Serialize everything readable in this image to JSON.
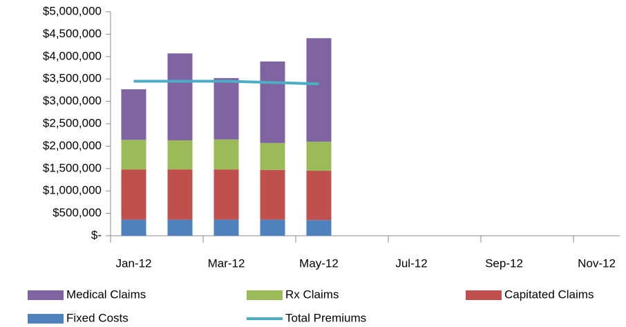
{
  "chart_data": {
    "type": "bar",
    "stacked": true,
    "categories": [
      "Jan-12",
      null,
      "Mar-12",
      null,
      "May-12",
      null,
      "Jul-12",
      null,
      "Sep-12",
      null,
      "Nov-12"
    ],
    "series": [
      {
        "name": "Medical Claims",
        "color": "#8064a2",
        "values": [
          1130000,
          1940000,
          1370000,
          1820000,
          2310000,
          null,
          null,
          null,
          null,
          null,
          null
        ]
      },
      {
        "name": "Rx Claims",
        "color": "#9bbb59",
        "values": [
          660000,
          650000,
          670000,
          600000,
          650000,
          null,
          null,
          null,
          null,
          null,
          null
        ]
      },
      {
        "name": "Capitated Claims",
        "color": "#c0504d",
        "values": [
          1120000,
          1120000,
          1120000,
          1110000,
          1100000,
          null,
          null,
          null,
          null,
          null,
          null
        ]
      },
      {
        "name": "Fixed Costs",
        "color": "#4f81bd",
        "values": [
          360000,
          360000,
          360000,
          360000,
          350000,
          null,
          null,
          null,
          null,
          null,
          null
        ]
      },
      {
        "name": "Total Premiums",
        "type": "line",
        "color": "#4bacc6",
        "values": [
          3450000,
          3450000,
          3450000,
          3420000,
          3390000,
          null,
          null,
          null,
          null,
          null,
          null
        ]
      }
    ],
    "ylim": [
      0,
      5000000
    ],
    "yticks": [
      {
        "value": 0,
        "label": "$-"
      },
      {
        "value": 500000,
        "label": "$500,000"
      },
      {
        "value": 1000000,
        "label": "$1,000,000"
      },
      {
        "value": 1500000,
        "label": "$1,500,000"
      },
      {
        "value": 2000000,
        "label": "$2,000,000"
      },
      {
        "value": 2500000,
        "label": "$2,500,000"
      },
      {
        "value": 3000000,
        "label": "$3,000,000"
      },
      {
        "value": 3500000,
        "label": "$3,500,000"
      },
      {
        "value": 4000000,
        "label": "$4,000,000"
      },
      {
        "value": 4500000,
        "label": "$4,500,000"
      },
      {
        "value": 5000000,
        "label": "$5,000,000"
      }
    ],
    "grid": false,
    "legend": "bottom"
  }
}
